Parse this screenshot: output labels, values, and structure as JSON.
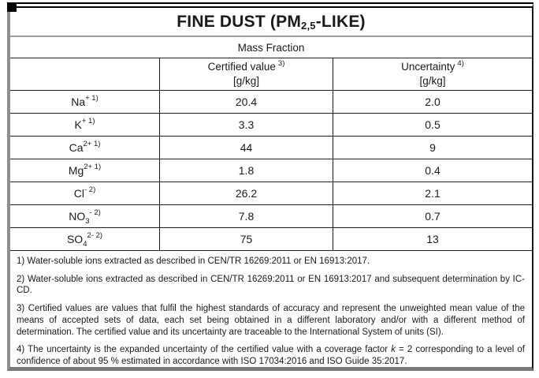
{
  "colors": {
    "text": "#1a1a1a",
    "border_dark": "#000000",
    "border_gray": "#8f8f8f",
    "background": "#ffffff"
  },
  "document": {
    "title": {
      "prefix": "FINE DUST (PM",
      "subscript": "2,5",
      "suffix": "-LIKE)"
    },
    "section_header": "Mass Fraction",
    "columns": {
      "certified": {
        "label": "Certified value",
        "note_ref": "3)",
        "unit": "[g/kg]"
      },
      "uncertainty": {
        "label": "Uncertainty",
        "note_ref": "4)",
        "unit": "[g/kg]"
      }
    },
    "rows": [
      {
        "ion_parts": [
          {
            "t": "Na"
          },
          {
            "t": "+ 1)",
            "s": "sup"
          }
        ],
        "certified": "20.4",
        "uncertainty": "2.0"
      },
      {
        "ion_parts": [
          {
            "t": "K"
          },
          {
            "t": "+ 1)",
            "s": "sup"
          }
        ],
        "certified": "3.3",
        "uncertainty": "0.5"
      },
      {
        "ion_parts": [
          {
            "t": "Ca"
          },
          {
            "t": "2+ 1)",
            "s": "sup"
          }
        ],
        "certified": "44",
        "uncertainty": "9"
      },
      {
        "ion_parts": [
          {
            "t": "Mg"
          },
          {
            "t": "2+ 1)",
            "s": "sup"
          }
        ],
        "certified": "1.8",
        "uncertainty": "0.4"
      },
      {
        "ion_parts": [
          {
            "t": "Cl"
          },
          {
            "t": "- 2)",
            "s": "sup"
          }
        ],
        "certified": "26.2",
        "uncertainty": "2.1"
      },
      {
        "ion_parts": [
          {
            "t": "NO"
          },
          {
            "t": "3",
            "s": "sub"
          },
          {
            "t": "- 2)",
            "s": "sup"
          }
        ],
        "certified": "7.8",
        "uncertainty": "0.7"
      },
      {
        "ion_parts": [
          {
            "t": "SO"
          },
          {
            "t": "4",
            "s": "sub"
          },
          {
            "t": "2- 2)",
            "s": "sup"
          }
        ],
        "certified": "75",
        "uncertainty": "13"
      }
    ],
    "footnotes": [
      {
        "parts": [
          {
            "t": "1) Water-soluble ions extracted as described in CEN/TR 16269:2011 or EN 16913:2017."
          }
        ]
      },
      {
        "parts": [
          {
            "t": "2) Water-soluble ions extracted as described in CEN/TR 16269:2011 or EN 16913:2017 and subsequent determination by IC-CD."
          }
        ]
      },
      {
        "parts": [
          {
            "t": "3) Certified values are values that fulfil the highest standards of accuracy and represent the unweighted mean value of the means of accepted sets of data, each set being obtained in a different laboratory and/or with a different method of determination. The certified value and its uncertainty are traceable to the International System of units (SI)."
          }
        ]
      },
      {
        "parts": [
          {
            "t": "4) The uncertainty is the expanded uncertainty of the certified value with a coverage factor "
          },
          {
            "t": "k",
            "s": "i"
          },
          {
            "t": " = 2 corresponding to a level of confidence of about 95 % estimated in accordance with ISO 17034:2016 and ISO Guide 35:2017."
          }
        ]
      }
    ]
  }
}
